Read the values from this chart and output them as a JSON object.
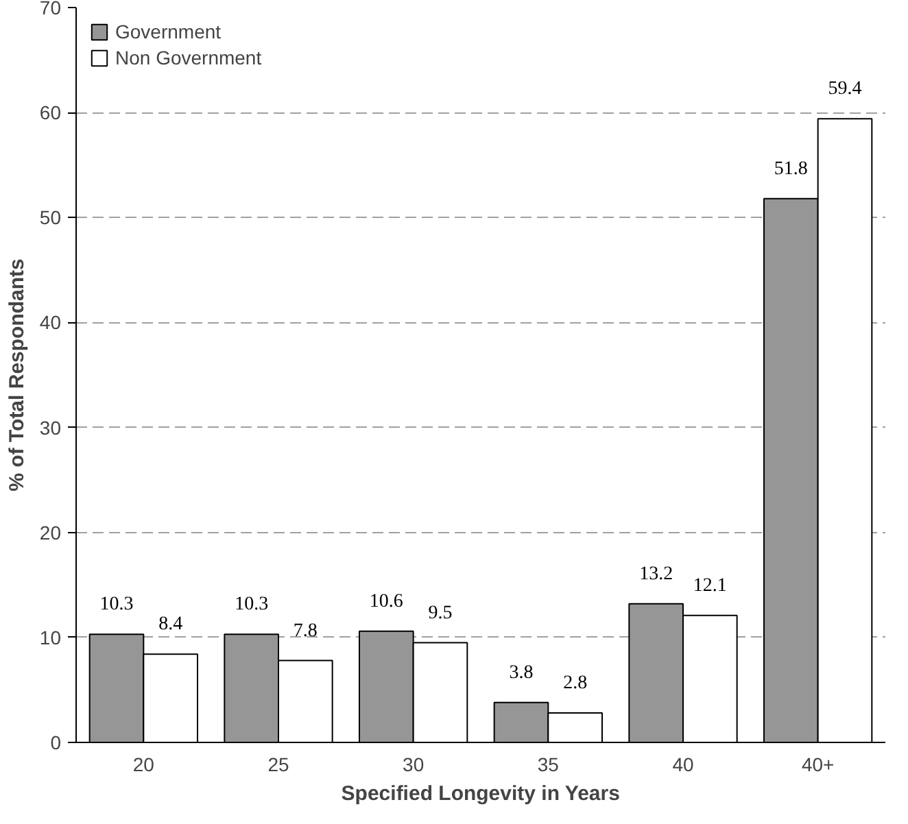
{
  "chart_data": {
    "type": "bar",
    "xlabel": "Specified Longevity in Years",
    "ylabel": "% of Total Respondants",
    "categories": [
      "20",
      "25",
      "30",
      "35",
      "40",
      "40+"
    ],
    "series": [
      {
        "name": "Government",
        "color": "#969696",
        "values": [
          10.3,
          10.3,
          10.6,
          3.8,
          13.2,
          51.8
        ]
      },
      {
        "name": "Non Government",
        "color": "#ffffff",
        "values": [
          8.4,
          7.8,
          9.5,
          2.8,
          12.1,
          59.4
        ]
      }
    ],
    "ylim": [
      0,
      70
    ],
    "yticks": [
      0,
      10,
      20,
      30,
      40,
      50,
      60,
      70
    ],
    "grid": "y",
    "legend": "top left",
    "data_labels": true
  }
}
